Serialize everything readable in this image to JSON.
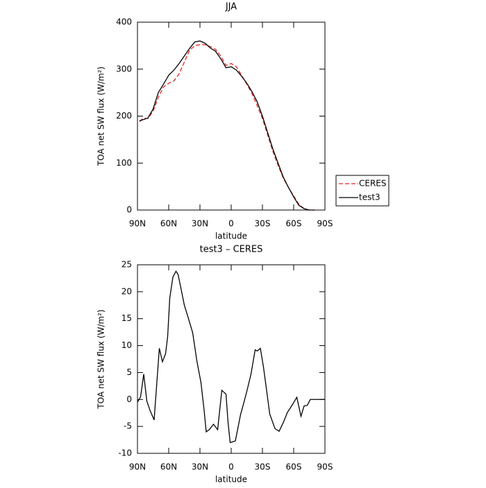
{
  "chart_data": [
    {
      "type": "line",
      "title": "JJA",
      "x_label": "latitude",
      "y_label": "TOA net SW flux (W/m²)",
      "x": [
        88,
        85,
        80,
        75,
        70,
        65,
        60,
        55,
        50,
        45,
        40,
        35,
        30,
        25,
        20,
        15,
        10,
        5,
        0,
        -5,
        -10,
        -15,
        -20,
        -25,
        -30,
        -35,
        -40,
        -45,
        -50,
        -55,
        -60,
        -65,
        -70,
        -75,
        -80
      ],
      "series": [
        {
          "name": "CERES",
          "color": "#e8231f",
          "dash": true,
          "values": [
            188,
            195,
            195,
            210,
            240,
            262,
            270,
            275,
            290,
            315,
            340,
            350,
            352,
            352,
            348,
            342,
            328,
            308,
            312,
            305,
            287,
            268,
            248,
            222,
            195,
            160,
            125,
            95,
            68,
            48,
            30,
            12,
            3,
            0,
            0
          ]
        },
        {
          "name": "test3",
          "color": "#000000",
          "dash": false,
          "values": [
            190,
            192,
            196,
            215,
            250,
            268,
            287,
            298,
            312,
            328,
            344,
            358,
            360,
            355,
            345,
            338,
            322,
            303,
            305,
            298,
            285,
            270,
            252,
            230,
            200,
            165,
            130,
            100,
            70,
            48,
            28,
            10,
            3,
            0,
            0
          ]
        }
      ],
      "xlim": [
        90,
        -90
      ],
      "xticks": [
        {
          "value": 90,
          "label": "90N"
        },
        {
          "value": 60,
          "label": "60N"
        },
        {
          "value": 30,
          "label": "30N"
        },
        0,
        {
          "value": -30,
          "label": "30S"
        },
        {
          "value": -60,
          "label": "60S"
        },
        {
          "value": -90,
          "label": "90S"
        }
      ],
      "ylim": [
        0,
        400
      ],
      "yticks": [
        0,
        100,
        200,
        300,
        400
      ],
      "legend": "right",
      "grid": false
    },
    {
      "type": "line",
      "title": "test3 – CERES",
      "x_label": "latitude",
      "y_label": "TOA net SW flux (W/m²)",
      "x": [
        90,
        87,
        84,
        81,
        78,
        74,
        69,
        66,
        63,
        61,
        59,
        56,
        53,
        51,
        48,
        45,
        41,
        37,
        33,
        29,
        26,
        24,
        21,
        17,
        13,
        9,
        5,
        3,
        1,
        -4,
        -9,
        -12,
        -15,
        -19,
        -23,
        -25,
        -28,
        -31,
        -34,
        -37,
        -42,
        -46,
        -50,
        -54,
        -59,
        -63,
        -67,
        -70,
        -73,
        -76,
        -81,
        -90
      ],
      "values": [
        -0.5,
        0.5,
        4.7,
        -0.3,
        -2,
        -3.8,
        9.5,
        7,
        8.5,
        11.7,
        18.8,
        22.7,
        23.8,
        23.2,
        20.4,
        17.5,
        15,
        12.4,
        7.2,
        3.1,
        -2,
        -6,
        -5.6,
        -4.6,
        -5.6,
        1.7,
        1,
        -4.3,
        -8,
        -7.7,
        -2.8,
        -0.7,
        1.5,
        4.7,
        9.2,
        9,
        9.5,
        6,
        1.7,
        -2.7,
        -5.4,
        -5.9,
        -4.3,
        -2.4,
        -0.9,
        0.4,
        -3.1,
        -1.2,
        -1.1,
        0,
        0,
        0
      ],
      "color": "#000000",
      "xlim": [
        90,
        -90
      ],
      "xticks": [
        {
          "value": 90,
          "label": "90N"
        },
        {
          "value": 60,
          "label": "60N"
        },
        {
          "value": 30,
          "label": "30N"
        },
        0,
        {
          "value": -30,
          "label": "30S"
        },
        {
          "value": -60,
          "label": "60S"
        },
        {
          "value": -90,
          "label": "90S"
        }
      ],
      "ylim": [
        -10,
        25
      ],
      "yticks": [
        -10,
        -5,
        0,
        5,
        10,
        15,
        20,
        25
      ],
      "grid": false
    }
  ]
}
